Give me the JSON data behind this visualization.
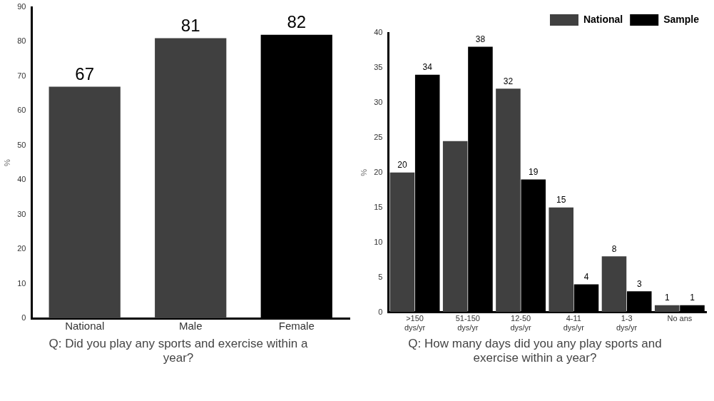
{
  "chart_data": [
    {
      "type": "bar",
      "title": "Q: Did you play any sports and exercise within a year?",
      "ylabel": "%",
      "categories": [
        "National",
        "Male",
        "Female"
      ],
      "values": [
        67,
        81,
        82
      ],
      "colors": [
        "#404040",
        "#404040",
        "#000000"
      ],
      "data_labels": true,
      "ylim": [
        0,
        90
      ],
      "yticks": [
        0,
        10,
        20,
        30,
        40,
        50,
        60,
        70,
        80,
        90
      ],
      "grid": false,
      "legend": false
    },
    {
      "type": "bar",
      "title": "Q: How many days did you any play sports and exercise within a year?",
      "ylabel": "%",
      "categories": [
        ">150\ndys/yr",
        "51-150\ndys/yr",
        "12-50\ndys/yr",
        "4-11\ndys/yr",
        "1-3\ndys/yr",
        "No ans"
      ],
      "series": [
        {
          "name": "National",
          "color": "#404040",
          "values": [
            20,
            24.5,
            32,
            15,
            8,
            1
          ],
          "value_labels": [
            "20",
            null,
            "32",
            "15",
            "8",
            "1"
          ]
        },
        {
          "name": "Sample",
          "color": "#000000",
          "values": [
            34,
            38,
            19,
            4,
            3,
            1
          ],
          "value_labels": [
            "34",
            "38",
            "19",
            "4",
            "3",
            "1"
          ]
        }
      ],
      "ylim": [
        0,
        40
      ],
      "yticks": [
        0,
        5,
        10,
        15,
        20,
        25,
        30,
        35,
        40
      ],
      "grid": false,
      "legend": "top right"
    }
  ]
}
